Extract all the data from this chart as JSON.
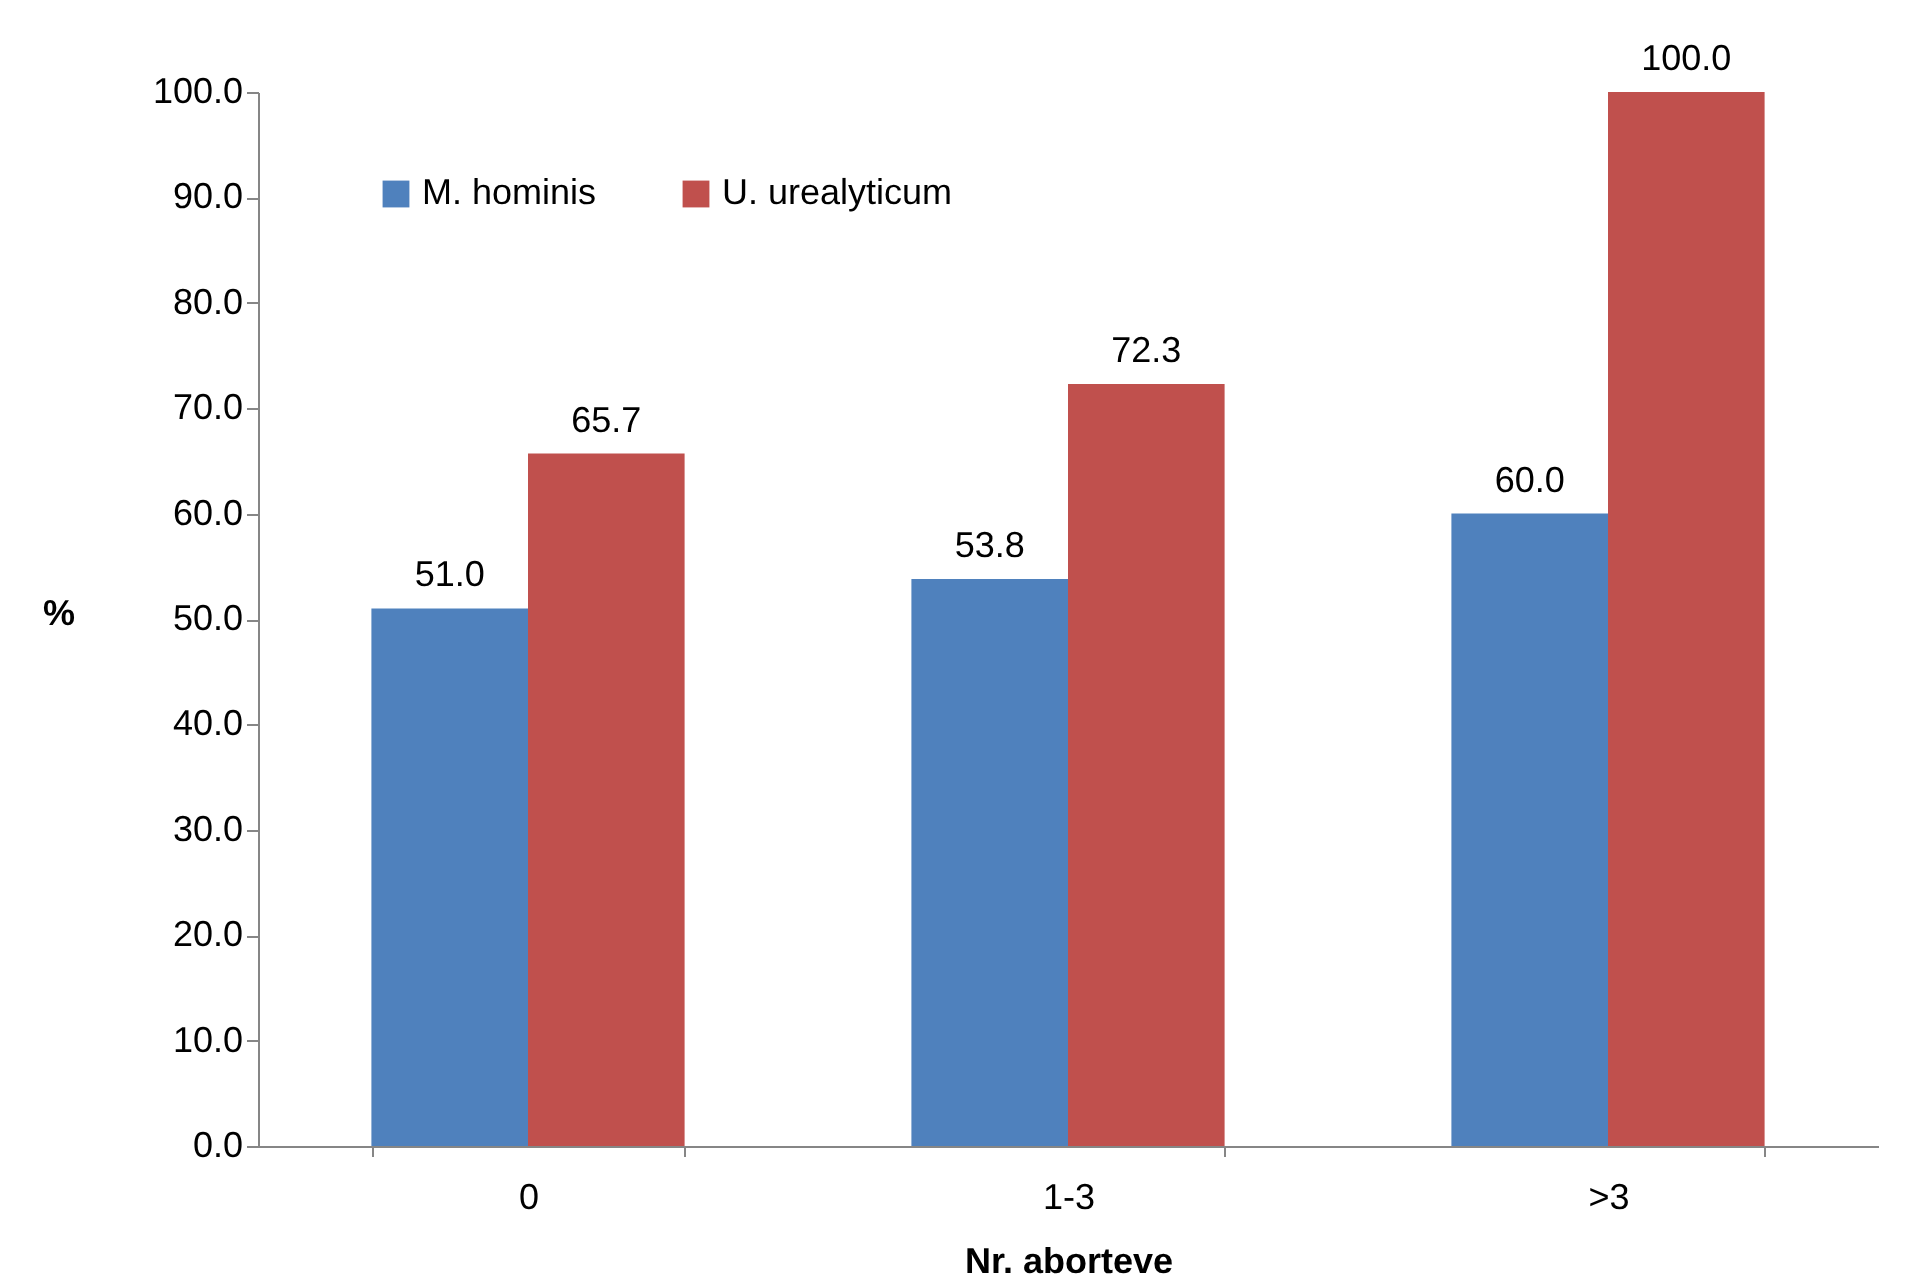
{
  "chart_data": {
    "type": "bar",
    "xlabel": "Nr. aborteve",
    "ylabel": "%",
    "categories": [
      "0",
      "1-3",
      ">3"
    ],
    "series": [
      {
        "name": "M. hominis",
        "color": "#4f81bd",
        "values": [
          51.0,
          53.8,
          60.0
        ],
        "value_labels": [
          "51.0",
          "53.8",
          "60.0"
        ]
      },
      {
        "name": "U. urealyticum",
        "color": "#c0504d",
        "values": [
          65.7,
          72.3,
          100.0
        ],
        "value_labels": [
          "65.7",
          "72.3",
          "100.0"
        ]
      }
    ],
    "ylim": [
      0,
      100
    ],
    "yticks": [
      {
        "value": 0,
        "label": "0.0"
      },
      {
        "value": 10,
        "label": "10.0"
      },
      {
        "value": 20,
        "label": "20.0"
      },
      {
        "value": 30,
        "label": "30.0"
      },
      {
        "value": 40,
        "label": "40.0"
      },
      {
        "value": 50,
        "label": "50.0"
      },
      {
        "value": 60,
        "label": "60.0"
      },
      {
        "value": 70,
        "label": "70.0"
      },
      {
        "value": 80,
        "label": "80.0"
      },
      {
        "value": 90,
        "label": "90.0"
      },
      {
        "value": 100,
        "label": "100.0"
      }
    ],
    "grid": false,
    "legend": "top left"
  }
}
